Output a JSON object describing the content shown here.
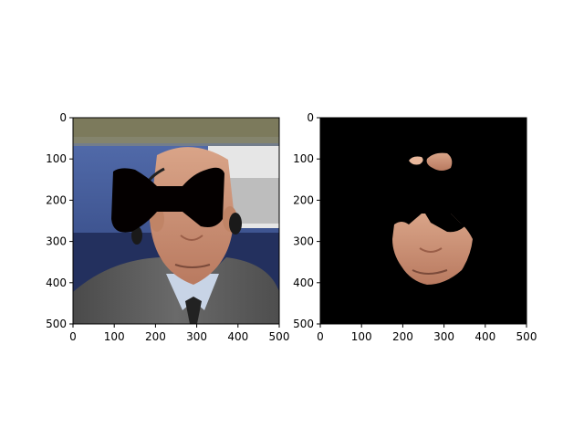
{
  "chart_data": [
    {
      "type": "image",
      "title": "",
      "xlabel": "",
      "ylabel": "",
      "xlim": [
        0,
        500
      ],
      "ylim": [
        500,
        0
      ],
      "xticks": [
        0,
        100,
        200,
        300,
        400,
        500
      ],
      "yticks": [
        0,
        100,
        200,
        300,
        400,
        500
      ],
      "y_inverted": true,
      "content": "photo",
      "colors": {
        "background_wall": "#4a66a8",
        "suit": "#5a5a5a",
        "mask": "#000000",
        "skin": "#c88f74"
      }
    },
    {
      "type": "image",
      "title": "",
      "xlabel": "",
      "ylabel": "",
      "xlim": [
        0,
        500
      ],
      "ylim": [
        500,
        0
      ],
      "xticks": [
        0,
        100,
        200,
        300,
        400,
        500
      ],
      "yticks": [
        0,
        100,
        200,
        300,
        400,
        500
      ],
      "y_inverted": true,
      "content": "segmentation",
      "colors": {
        "background": "#000000",
        "skin": "#c88f74"
      }
    }
  ]
}
